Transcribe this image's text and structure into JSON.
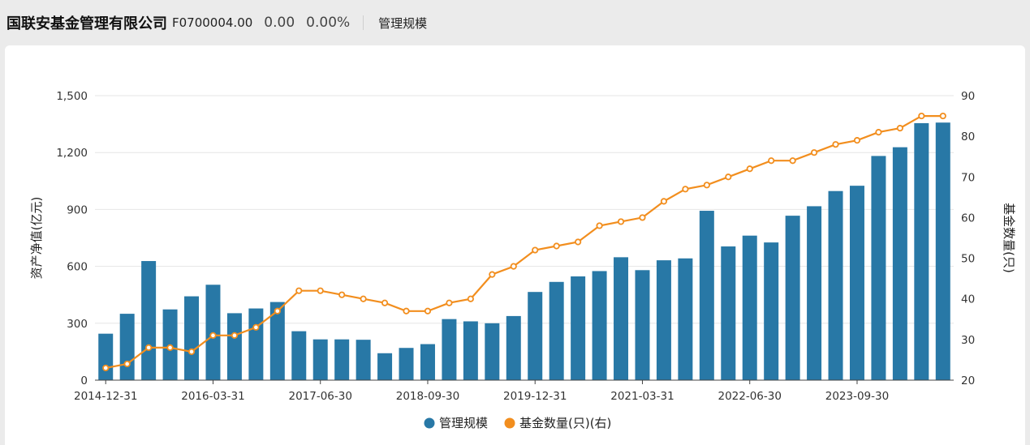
{
  "header": {
    "fund_name": "国联安基金管理有限公司",
    "fund_code": "F0700004.00",
    "value": "0.00",
    "change_pct": "0.00%",
    "tab_label": "管理规模"
  },
  "colors": {
    "bar": "#2878a6",
    "line": "#f28e1e",
    "grid": "#e6e6e6"
  },
  "chart_data": {
    "type": "bar",
    "categories": [
      "2014-12-31",
      "2015-03-31",
      "2015-06-30",
      "2015-09-30",
      "2015-12-31",
      "2016-03-31",
      "2016-06-30",
      "2016-09-30",
      "2016-12-31",
      "2017-03-31",
      "2017-06-30",
      "2017-09-30",
      "2017-12-31",
      "2018-03-31",
      "2018-06-30",
      "2018-09-30",
      "2018-12-31",
      "2019-03-31",
      "2019-06-30",
      "2019-09-30",
      "2019-12-31",
      "2020-03-31",
      "2020-06-30",
      "2020-09-30",
      "2020-12-31",
      "2021-03-31",
      "2021-06-30",
      "2021-09-30",
      "2021-12-31",
      "2022-03-31",
      "2022-06-30",
      "2022-09-30",
      "2022-12-31",
      "2023-03-31",
      "2023-06-30",
      "2023-09-30",
      "2023-12-31",
      "2024-03-31",
      "2024-06-30",
      "2024-09-30"
    ],
    "series": [
      {
        "name": "管理规模",
        "type": "bar",
        "axis": "left",
        "values": [
          245,
          350,
          628,
          373,
          442,
          503,
          353,
          378,
          412,
          258,
          215,
          215,
          213,
          142,
          170,
          190,
          322,
          310,
          300,
          338,
          465,
          518,
          547,
          575,
          648,
          580,
          632,
          642,
          893,
          705,
          762,
          726,
          867,
          917,
          997,
          1025,
          1182,
          1228,
          1355,
          1358
        ]
      },
      {
        "name": "基金数量(只)(右)",
        "type": "line",
        "axis": "right",
        "values": [
          23,
          24,
          28,
          28,
          27,
          31,
          31,
          33,
          37,
          42,
          42,
          41,
          40,
          39,
          37,
          37,
          39,
          40,
          46,
          48,
          52,
          53,
          54,
          58,
          59,
          60,
          64,
          67,
          68,
          70,
          72,
          74,
          74,
          76,
          78,
          79,
          81,
          82,
          85,
          85
        ]
      }
    ],
    "x_tick_labels": [
      "2014-12-31",
      "2016-03-31",
      "2017-06-30",
      "2018-09-30",
      "2019-12-31",
      "2021-03-31",
      "2022-06-30",
      "2023-09-30"
    ],
    "ylabel": "资产净值(亿元)",
    "ylabel_right": "基金数量(只)",
    "ylim": [
      0,
      1500
    ],
    "yticks": [
      0,
      300,
      600,
      900,
      1200,
      1500
    ],
    "yticks_labels": [
      "0",
      "300",
      "600",
      "900",
      "1,200",
      "1,500"
    ],
    "ylim_right": [
      20,
      90
    ],
    "yticks_right": [
      20,
      30,
      40,
      50,
      60,
      70,
      80,
      90
    ],
    "legend": [
      "管理规模",
      "基金数量(只)(右)"
    ],
    "legend_position": "bottom-center",
    "grid": true
  }
}
